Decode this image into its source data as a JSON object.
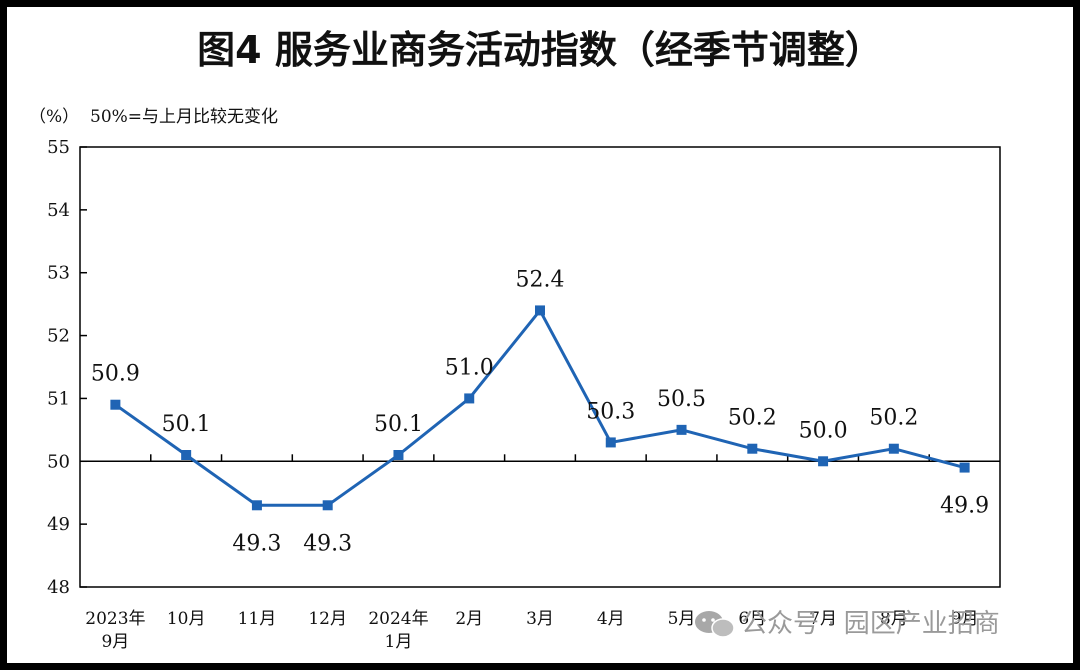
{
  "chart_data": {
    "type": "line",
    "title": "图4  服务业商务活动指数（经季节调整）",
    "unit_label": "（%）",
    "note": "50%=与上月比较无变化",
    "categories": [
      [
        "2023年",
        "9月"
      ],
      [
        "10月"
      ],
      [
        "11月"
      ],
      [
        "12月"
      ],
      [
        "2024年",
        "1月"
      ],
      [
        "2月"
      ],
      [
        "3月"
      ],
      [
        "4月"
      ],
      [
        "5月"
      ],
      [
        "6月"
      ],
      [
        "7月"
      ],
      [
        "8月"
      ],
      [
        "9月"
      ]
    ],
    "series": [
      {
        "values": [
          50.9,
          50.1,
          49.3,
          49.3,
          50.1,
          51.0,
          52.4,
          50.3,
          50.5,
          50.2,
          50.0,
          50.2,
          49.9
        ]
      }
    ],
    "data_labels": [
      "50.9",
      "50.1",
      "49.3",
      "49.3",
      "50.1",
      "51.0",
      "52.4",
      "50.3",
      "50.5",
      "50.2",
      "50.0",
      "50.2",
      "49.9"
    ],
    "label_positions": [
      "above",
      "above",
      "below",
      "below",
      "above",
      "above",
      "above",
      "above",
      "above",
      "above",
      "above",
      "above",
      "below"
    ],
    "ylim": [
      48,
      55
    ],
    "yticks": [
      48,
      49,
      50,
      51,
      52,
      53,
      54,
      55
    ],
    "reference_line": 50,
    "line_color": "#1f64b4",
    "grid": false
  },
  "watermark": {
    "icon": "wechat-icon",
    "text": "公众号 · 园区产业招商"
  }
}
